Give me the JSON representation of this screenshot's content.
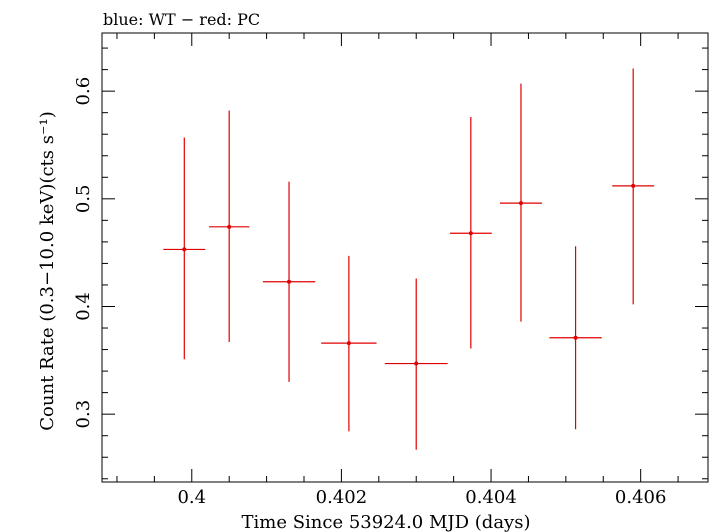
{
  "chart_data": {
    "type": "scatter",
    "title": "blue: WT − red: PC",
    "xlabel": "Time Since 53924.0 MJD (days)",
    "ylabel": "Count Rate (0.3−10.0 keV)(cts s⁻¹)",
    "xlim": [
      0.3988,
      0.4069
    ],
    "ylim": [
      0.237,
      0.654
    ],
    "x_ticks": [
      0.4,
      0.402,
      0.404,
      0.406
    ],
    "x_tick_labels": [
      "0.4",
      "0.402",
      "0.404",
      "0.406"
    ],
    "y_ticks": [
      0.3,
      0.4,
      0.5,
      0.6
    ],
    "y_tick_labels": [
      "0.3",
      "0.4",
      "0.5",
      "0.6"
    ],
    "grid": false,
    "series": [
      {
        "color": "#e00000",
        "points": [
          {
            "x": 0.3999,
            "y": 0.453,
            "xerr": 0.00028,
            "yerr_low": 0.102,
            "yerr_high": 0.104
          },
          {
            "x": 0.4005,
            "y": 0.474,
            "xerr": 0.00027,
            "yerr_low": 0.107,
            "yerr_high": 0.108
          },
          {
            "x": 0.4013,
            "y": 0.423,
            "xerr": 0.00035,
            "yerr_low": 0.093,
            "yerr_high": 0.093
          },
          {
            "x": 0.4021,
            "y": 0.366,
            "xerr": 0.00037,
            "yerr_low": 0.082,
            "yerr_high": 0.081
          },
          {
            "x": 0.403,
            "y": 0.347,
            "xerr": 0.00042,
            "yerr_low": 0.08,
            "yerr_high": 0.079
          },
          {
            "x": 0.40373,
            "y": 0.468,
            "xerr": 0.00028,
            "yerr_low": 0.107,
            "yerr_high": 0.108
          },
          {
            "x": 0.4044,
            "y": 0.496,
            "xerr": 0.00028,
            "yerr_low": 0.11,
            "yerr_high": 0.111
          },
          {
            "x": 0.40513,
            "y": 0.371,
            "xerr": 0.00035,
            "yerr_low": 0.085,
            "yerr_high": 0.085
          },
          {
            "x": 0.4059,
            "y": 0.512,
            "xerr": 0.00028,
            "yerr_low": 0.11,
            "yerr_high": 0.109
          }
        ]
      }
    ]
  }
}
